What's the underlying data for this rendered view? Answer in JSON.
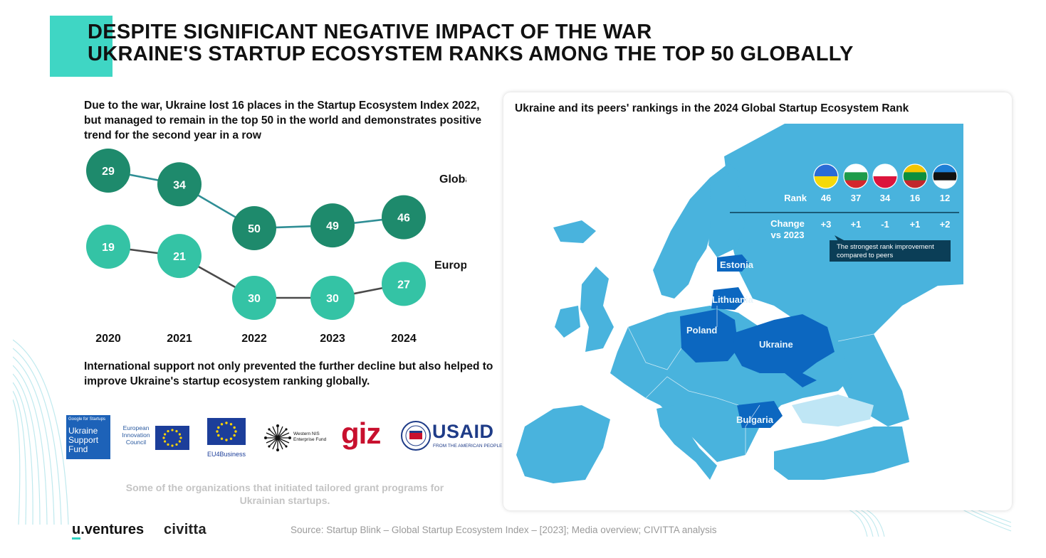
{
  "title": {
    "line1": "DESPITE SIGNIFICANT NEGATIVE IMPACT OF THE WAR",
    "line2": "UKRAINE'S STARTUP ECOSYSTEM RANKS AMONG THE TOP 50 GLOBALLY"
  },
  "intro": "Due to the war, Ukraine lost 16 places in the Startup Ecosystem Index 2022, but managed to remain in the top 50 in the world and demonstrates positive trend for the second year in a row",
  "outro": "International support not only prevented the further decline but also helped to improve Ukraine's startup ecosystem ranking globally.",
  "colors": {
    "accent": "#3fd6c4",
    "global_circle": "#1e8a6c",
    "global_line": "#2f8e95",
    "europe_circle": "#34c3a5",
    "europe_line": "#4a4a4a",
    "map_water": "#49b3dd",
    "map_land": "#3fa5d8",
    "map_highlight": "#0c67c0",
    "callout": "#0b3e57"
  },
  "chart_data": {
    "type": "line",
    "categories": [
      "2020",
      "2021",
      "2022",
      "2023",
      "2024"
    ],
    "series": [
      {
        "name": "Global",
        "values": [
          29,
          34,
          50,
          49,
          46
        ]
      },
      {
        "name": "Europe",
        "values": [
          19,
          21,
          30,
          30,
          27
        ]
      }
    ]
  },
  "logos": {
    "google_tag": "Google for Startups",
    "google_fund": "Ukraine Support Fund",
    "eic": "European Innovation Council",
    "eu4business": "EU4Business",
    "wnisef": "Western NIS Enterprise Fund",
    "giz": "giz",
    "usaid": "USAID",
    "usaid_sub": "FROM THE AMERICAN PEOPLE"
  },
  "caption": "Some of the organizations that initiated tailored grant programs for Ukrainian startups.",
  "brands": {
    "uventures_u": "u",
    "uventures_rest": ".ventures",
    "civitta": "civitta"
  },
  "source": "Source: Startup Blink – Global Startup Ecosystem Index – [2023]; Media overview; CIVITTA analysis",
  "map": {
    "title": "Ukraine and its peers' rankings in the 2024 Global Startup Ecosystem Rank",
    "rank_label": "Rank",
    "change_label_1": "Change",
    "change_label_2": "vs 2023",
    "ranks": [
      "46",
      "37",
      "34",
      "16",
      "12"
    ],
    "changes": [
      "+3",
      "+1",
      "-1",
      "+1",
      "+2"
    ],
    "flags": [
      "ukraine-flag-icon",
      "bulgaria-flag-icon",
      "poland-flag-icon",
      "lithuania-flag-icon",
      "estonia-flag-icon"
    ],
    "callout_1": "The strongest rank improvement",
    "callout_2": "compared to peers",
    "countries": [
      "Estonia",
      "Lithuania",
      "Poland",
      "Ukraine",
      "Bulgaria"
    ]
  }
}
